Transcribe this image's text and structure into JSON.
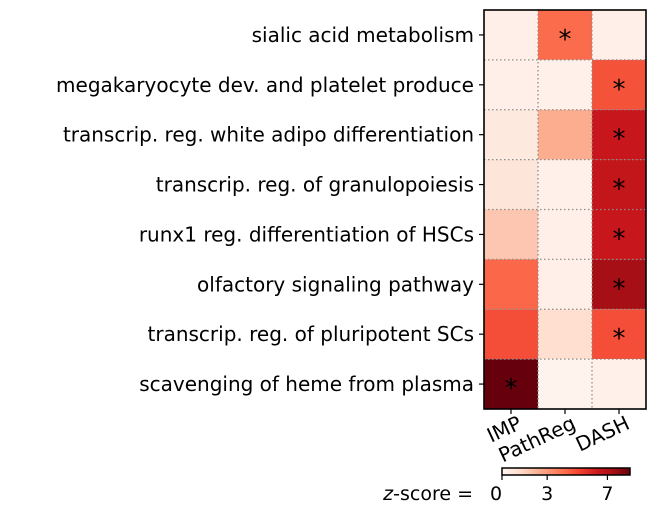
{
  "chart_data": {
    "type": "heatmap",
    "rows": [
      "sialic acid metabolism",
      "megakaryocyte dev. and platelet produce",
      "transcrip. reg. white adipo differentiation",
      "transcrip. reg. of granulopoiesis",
      "runx1 reg. differentiation of HSCs",
      "olfactory signaling pathway",
      "transcrip. reg. of pluripotent SCs",
      "scavenging of heme from plasma"
    ],
    "columns": [
      "IMP",
      "PathReg",
      "DASH"
    ],
    "values": [
      [
        0.3,
        4.2,
        0.3
      ],
      [
        0.3,
        0.2,
        4.8
      ],
      [
        0.6,
        2.5,
        6.5
      ],
      [
        0.8,
        0.2,
        6.6
      ],
      [
        1.8,
        0.3,
        6.5
      ],
      [
        4.3,
        0.3,
        7.4
      ],
      [
        4.9,
        1.1,
        4.9
      ],
      [
        8.5,
        0.1,
        0.2
      ]
    ],
    "significant": [
      [
        false,
        true,
        false
      ],
      [
        false,
        false,
        true
      ],
      [
        false,
        false,
        true
      ],
      [
        false,
        false,
        true
      ],
      [
        false,
        false,
        true
      ],
      [
        false,
        false,
        true
      ],
      [
        false,
        false,
        true
      ],
      [
        true,
        false,
        false
      ]
    ],
    "marker": "*",
    "colorbar": {
      "label_prefix": "z",
      "label_suffix": "-score =",
      "range": [
        0,
        8.5
      ],
      "ticks": [
        {
          "value": 0,
          "label": "0"
        },
        {
          "value": 3,
          "label": "3"
        },
        {
          "value": 7,
          "label": "7"
        }
      ]
    },
    "colormap": "Reds",
    "grid": "dotted"
  }
}
